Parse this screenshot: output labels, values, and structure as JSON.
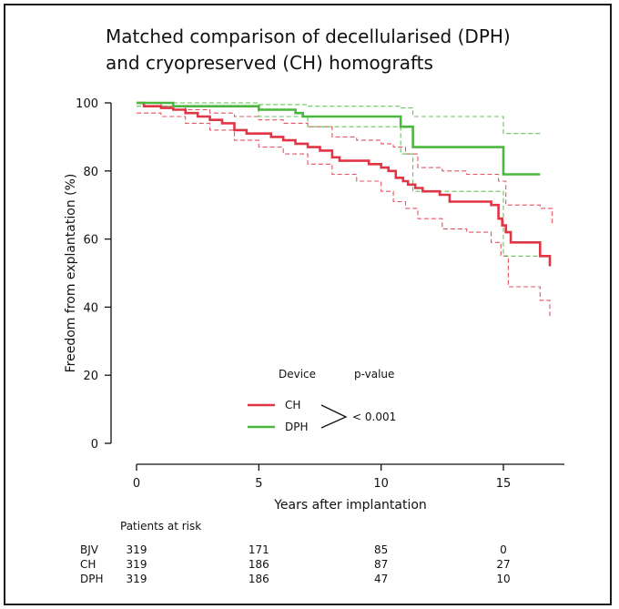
{
  "chart_data": {
    "type": "line",
    "title_lines": [
      "Matched comparison of decellularised (DPH)",
      "and cryopreserved (CH) homografts"
    ],
    "xlabel": "Years after implantation",
    "ylabel": "Freedom from explantation (%)",
    "xlim": [
      0,
      17.5
    ],
    "ylim": [
      0,
      100
    ],
    "xticks": [
      0,
      5,
      10,
      15
    ],
    "yticks": [
      0,
      20,
      40,
      60,
      80,
      100
    ],
    "legend": {
      "header_device": "Device",
      "header_pvalue": "p-value",
      "pvalue": "< 0.001"
    },
    "series": [
      {
        "name": "CH",
        "color": "#e03545",
        "estimate": [
          [
            0,
            100
          ],
          [
            0.3,
            99
          ],
          [
            1.0,
            98.5
          ],
          [
            1.5,
            98
          ],
          [
            2.0,
            97
          ],
          [
            2.5,
            96
          ],
          [
            3.0,
            95
          ],
          [
            3.5,
            94
          ],
          [
            4.0,
            92
          ],
          [
            4.5,
            91
          ],
          [
            5.0,
            91
          ],
          [
            5.5,
            90
          ],
          [
            6.0,
            89
          ],
          [
            6.5,
            88
          ],
          [
            7.0,
            87
          ],
          [
            7.5,
            86
          ],
          [
            8.0,
            84
          ],
          [
            8.3,
            83
          ],
          [
            9.0,
            83
          ],
          [
            9.5,
            82
          ],
          [
            10.0,
            81
          ],
          [
            10.3,
            80
          ],
          [
            10.6,
            78
          ],
          [
            10.9,
            77
          ],
          [
            11.1,
            76
          ],
          [
            11.4,
            75
          ],
          [
            11.7,
            74
          ],
          [
            12.4,
            73
          ],
          [
            12.8,
            71
          ],
          [
            13.5,
            71
          ],
          [
            14.5,
            70
          ],
          [
            14.8,
            66
          ],
          [
            14.95,
            64
          ],
          [
            15.1,
            62
          ],
          [
            15.3,
            59
          ],
          [
            16.5,
            55
          ],
          [
            16.8,
            55
          ],
          [
            16.9,
            52
          ]
        ],
        "ci_upper": [
          [
            0,
            100
          ],
          [
            1,
            99
          ],
          [
            2,
            98
          ],
          [
            3,
            97
          ],
          [
            4,
            96
          ],
          [
            5,
            95
          ],
          [
            6,
            94
          ],
          [
            7,
            93
          ],
          [
            8,
            90
          ],
          [
            9,
            89
          ],
          [
            10,
            88
          ],
          [
            10.5,
            87
          ],
          [
            11,
            85
          ],
          [
            11.5,
            81
          ],
          [
            12.5,
            80
          ],
          [
            13.5,
            79
          ],
          [
            14.8,
            77
          ],
          [
            15.1,
            70
          ],
          [
            16.5,
            69
          ],
          [
            17,
            64
          ]
        ],
        "ci_lower": [
          [
            0,
            97
          ],
          [
            1,
            96
          ],
          [
            2,
            94
          ],
          [
            3,
            92
          ],
          [
            4,
            89
          ],
          [
            5,
            87
          ],
          [
            6,
            85
          ],
          [
            7,
            82
          ],
          [
            8,
            79
          ],
          [
            9,
            77
          ],
          [
            10,
            74
          ],
          [
            10.5,
            71
          ],
          [
            11,
            69
          ],
          [
            11.5,
            66
          ],
          [
            12.5,
            63
          ],
          [
            13.5,
            62
          ],
          [
            14.5,
            59
          ],
          [
            14.9,
            55
          ],
          [
            15.2,
            46
          ],
          [
            16.5,
            42
          ],
          [
            16.9,
            37
          ]
        ]
      },
      {
        "name": "DPH",
        "color": "#4ab83c",
        "estimate": [
          [
            0,
            100
          ],
          [
            1.5,
            99
          ],
          [
            5.0,
            98
          ],
          [
            6.5,
            97
          ],
          [
            6.8,
            96
          ],
          [
            10.8,
            93
          ],
          [
            11.3,
            87
          ],
          [
            14.9,
            87
          ],
          [
            15.0,
            79
          ],
          [
            16.5,
            79
          ]
        ],
        "ci_upper": [
          [
            0,
            100
          ],
          [
            5,
            99.5
          ],
          [
            7,
            99
          ],
          [
            10.8,
            98.5
          ],
          [
            11.3,
            96
          ],
          [
            14.9,
            96
          ],
          [
            15.0,
            91
          ],
          [
            16.5,
            91
          ]
        ],
        "ci_lower": [
          [
            0,
            99
          ],
          [
            5,
            96
          ],
          [
            7,
            93
          ],
          [
            10.8,
            85
          ],
          [
            11.3,
            74
          ],
          [
            14.9,
            74
          ],
          [
            15.0,
            55
          ],
          [
            16.5,
            55
          ]
        ]
      }
    ]
  },
  "risk_table": {
    "title": "Patients at risk",
    "time_points": [
      0,
      5,
      10,
      15
    ],
    "rows": [
      {
        "label": "BJV",
        "values": [
          "319",
          "171",
          "85",
          "0"
        ]
      },
      {
        "label": "CH",
        "values": [
          "319",
          "186",
          "87",
          "27"
        ]
      },
      {
        "label": "DPH",
        "values": [
          "319",
          "186",
          "47",
          "10"
        ]
      }
    ]
  }
}
